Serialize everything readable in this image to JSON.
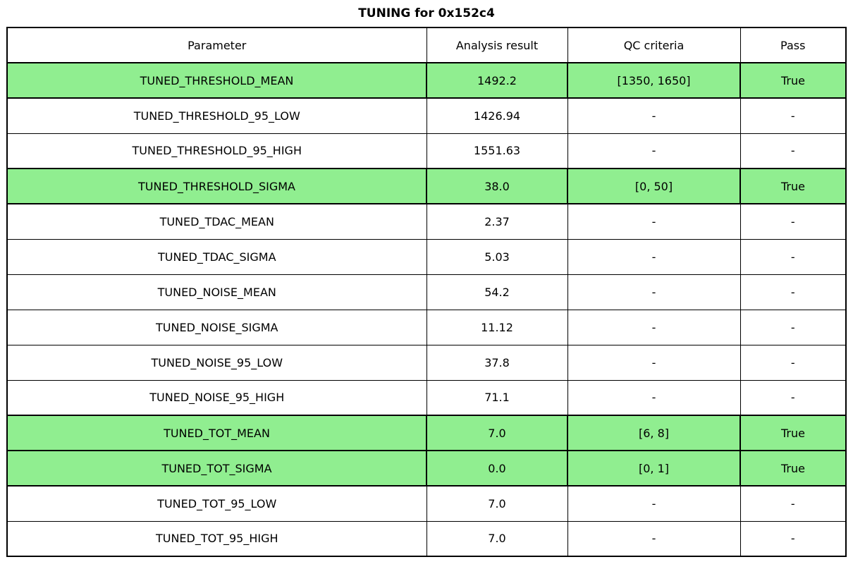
{
  "title": "TUNING for 0x152c4",
  "colors": {
    "pass_row_bg": "#90EE90",
    "border": "#000000",
    "text": "#000000",
    "background": "#FFFFFF"
  },
  "chart_data": {
    "type": "table",
    "title": "TUNING for 0x152c4",
    "columns": [
      "Parameter",
      "Analysis result",
      "QC criteria",
      "Pass"
    ],
    "rows": [
      {
        "parameter": "TUNED_THRESHOLD_MEAN",
        "result": "1492.2",
        "qc": "[1350, 1650]",
        "pass": "True",
        "highlight": true
      },
      {
        "parameter": "TUNED_THRESHOLD_95_LOW",
        "result": "1426.94",
        "qc": "-",
        "pass": "-",
        "highlight": false
      },
      {
        "parameter": "TUNED_THRESHOLD_95_HIGH",
        "result": "1551.63",
        "qc": "-",
        "pass": "-",
        "highlight": false
      },
      {
        "parameter": "TUNED_THRESHOLD_SIGMA",
        "result": "38.0",
        "qc": "[0, 50]",
        "pass": "True",
        "highlight": true
      },
      {
        "parameter": "TUNED_TDAC_MEAN",
        "result": "2.37",
        "qc": "-",
        "pass": "-",
        "highlight": false
      },
      {
        "parameter": "TUNED_TDAC_SIGMA",
        "result": "5.03",
        "qc": "-",
        "pass": "-",
        "highlight": false
      },
      {
        "parameter": "TUNED_NOISE_MEAN",
        "result": "54.2",
        "qc": "-",
        "pass": "-",
        "highlight": false
      },
      {
        "parameter": "TUNED_NOISE_SIGMA",
        "result": "11.12",
        "qc": "-",
        "pass": "-",
        "highlight": false
      },
      {
        "parameter": "TUNED_NOISE_95_LOW",
        "result": "37.8",
        "qc": "-",
        "pass": "-",
        "highlight": false
      },
      {
        "parameter": "TUNED_NOISE_95_HIGH",
        "result": "71.1",
        "qc": "-",
        "pass": "-",
        "highlight": false
      },
      {
        "parameter": "TUNED_TOT_MEAN",
        "result": "7.0",
        "qc": "[6, 8]",
        "pass": "True",
        "highlight": true
      },
      {
        "parameter": "TUNED_TOT_SIGMA",
        "result": "0.0",
        "qc": "[0, 1]",
        "pass": "True",
        "highlight": true
      },
      {
        "parameter": "TUNED_TOT_95_LOW",
        "result": "7.0",
        "qc": "-",
        "pass": "-",
        "highlight": false
      },
      {
        "parameter": "TUNED_TOT_95_HIGH",
        "result": "7.0",
        "qc": "-",
        "pass": "-",
        "highlight": false
      }
    ]
  }
}
